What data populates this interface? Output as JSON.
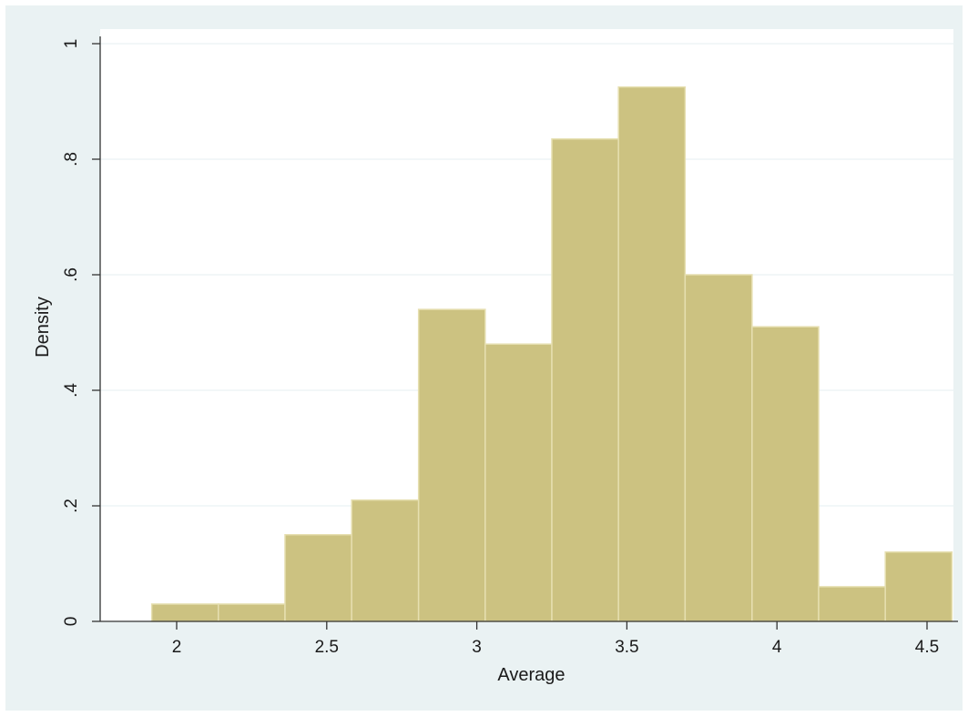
{
  "chart_data": {
    "type": "bar",
    "subtype": "histogram",
    "xlabel": "Average",
    "ylabel": "Density",
    "xlim": [
      1.8,
      4.65
    ],
    "ylim": [
      0,
      1
    ],
    "xticks": [
      {
        "value": 2,
        "label": "2"
      },
      {
        "value": 2.5,
        "label": "2.5"
      },
      {
        "value": 3,
        "label": "3"
      },
      {
        "value": 3.5,
        "label": "3.5"
      },
      {
        "value": 4,
        "label": "4"
      },
      {
        "value": 4.5,
        "label": "4.5"
      }
    ],
    "yticks": [
      {
        "value": 0,
        "label": "0"
      },
      {
        "value": 0.2,
        "label": ".2"
      },
      {
        "value": 0.4,
        "label": ".4"
      },
      {
        "value": 0.6,
        "label": ".6"
      },
      {
        "value": 0.8,
        "label": ".8"
      },
      {
        "value": 1,
        "label": "1"
      }
    ],
    "bins": [
      {
        "x0": 1.917,
        "x1": 2.139,
        "density": 0.03
      },
      {
        "x0": 2.139,
        "x1": 2.361,
        "density": 0.03
      },
      {
        "x0": 2.361,
        "x1": 2.583,
        "density": 0.15
      },
      {
        "x0": 2.583,
        "x1": 2.806,
        "density": 0.21
      },
      {
        "x0": 2.806,
        "x1": 3.028,
        "density": 0.54
      },
      {
        "x0": 3.028,
        "x1": 3.25,
        "density": 0.48
      },
      {
        "x0": 3.25,
        "x1": 3.472,
        "density": 0.835
      },
      {
        "x0": 3.472,
        "x1": 3.694,
        "density": 0.925
      },
      {
        "x0": 3.694,
        "x1": 3.917,
        "density": 0.6
      },
      {
        "x0": 3.917,
        "x1": 4.139,
        "density": 0.51
      },
      {
        "x0": 4.139,
        "x1": 4.361,
        "density": 0.06
      },
      {
        "x0": 4.361,
        "x1": 4.583,
        "density": 0.12
      }
    ],
    "grid": "horizontal",
    "colors": {
      "bar_fill": "#ccc281",
      "bar_stroke": "#e6dfb0",
      "plot_background": "#ffffff",
      "outer_background": "#eaf2f3",
      "grid": "#eaf2f3",
      "axis": "#333333"
    }
  }
}
